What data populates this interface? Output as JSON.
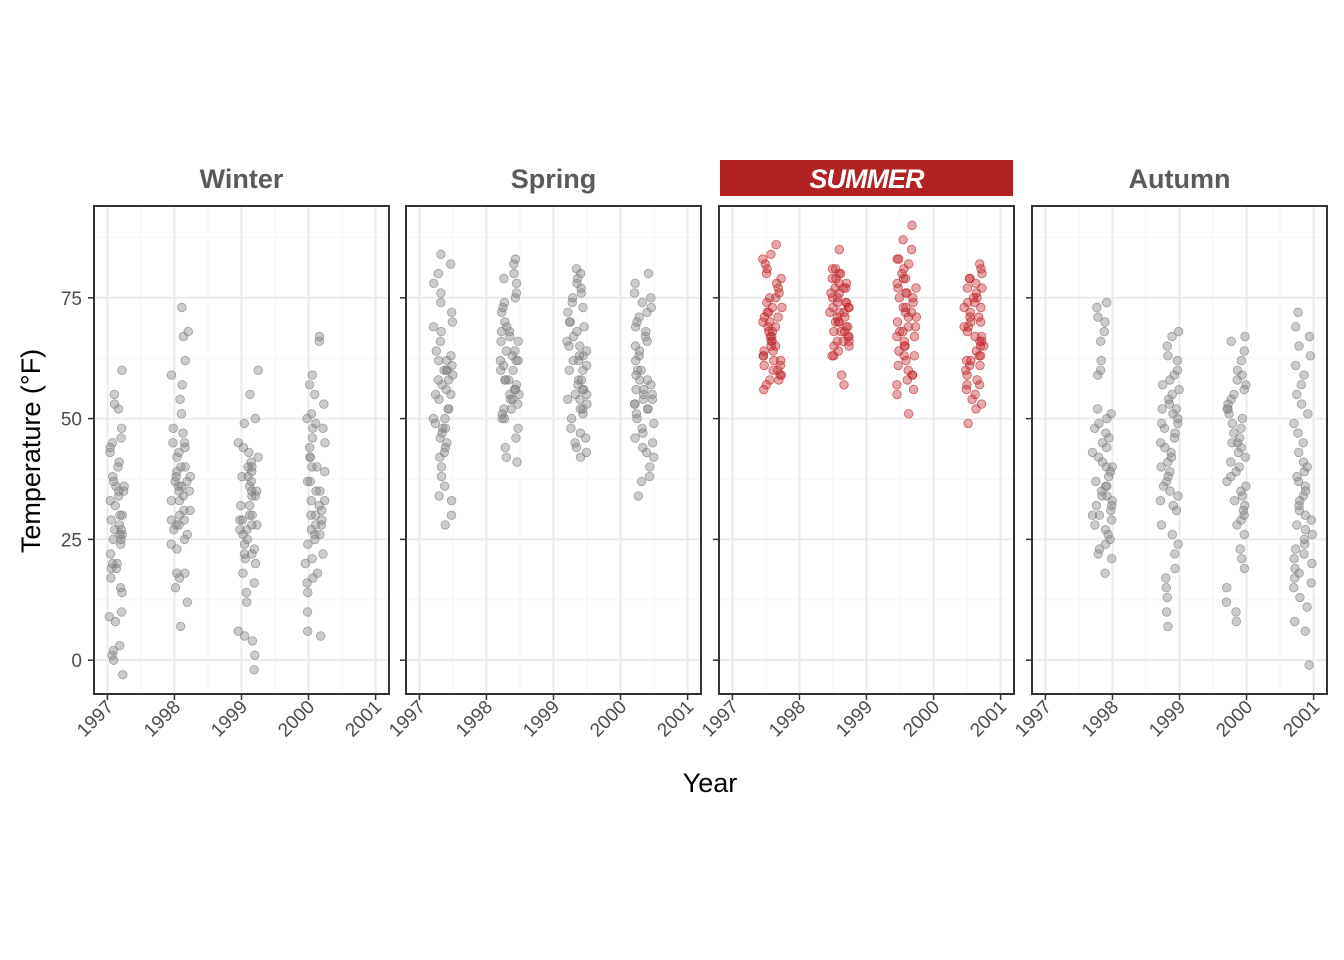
{
  "chart_data": {
    "type": "scatter",
    "xlabel": "Year",
    "ylabel": "Temperature (°F)",
    "xlim": [
      1996.8,
      2001.2
    ],
    "ylim": [
      -7,
      94
    ],
    "x_ticks": [
      1997,
      1998,
      1999,
      2000,
      2001
    ],
    "y_ticks": [
      0,
      25,
      50,
      75
    ],
    "grid": true,
    "highlight_panel": "Summer",
    "colors": {
      "default_point": "#808080",
      "highlight_point": "#c0282d",
      "highlight_strip": "#b22222",
      "panel_border": "#333333",
      "grid_major": "#ebebeb",
      "grid_minor": "#f5f5f5"
    },
    "panels": [
      {
        "name": "Winter",
        "strip_label": "Winter",
        "highlight": false,
        "clusters": [
          {
            "x_range": [
              1997.0,
              1997.25
            ],
            "y": [
              52,
              45,
              40,
              36,
              35,
              34,
              33,
              30,
              28,
              27,
              26,
              25,
              24,
              22,
              20,
              19,
              17,
              15,
              14,
              10,
              9,
              8,
              3,
              2,
              1,
              0,
              -3,
              60,
              55,
              53,
              46,
              44,
              43,
              38,
              37,
              36,
              35,
              32,
              30,
              29,
              27,
              26,
              25,
              20,
              19,
              48,
              41
            ]
          },
          {
            "x_range": [
              1997.95,
              1998.25
            ],
            "y": [
              48,
              47,
              45,
              44,
              43,
              40,
              38,
              36,
              35,
              33,
              31,
              30,
              29,
              28,
              27,
              25,
              24,
              23,
              18,
              17,
              15,
              12,
              7,
              73,
              68,
              67,
              62,
              59,
              57,
              54,
              51,
              45,
              42,
              40,
              38,
              37,
              36,
              35,
              34,
              33,
              31,
              29,
              28,
              26,
              18,
              39,
              37
            ]
          },
          {
            "x_range": [
              1998.95,
              1999.25
            ],
            "y": [
              42,
              40,
              38,
              36,
              35,
              34,
              32,
              30,
              29,
              28,
              27,
              26,
              25,
              23,
              22,
              20,
              18,
              16,
              14,
              12,
              6,
              5,
              4,
              1,
              -2,
              60,
              55,
              50,
              49,
              45,
              44,
              43,
              41,
              40,
              39,
              38,
              37,
              35,
              34,
              32,
              30,
              29,
              28,
              27,
              24,
              22,
              21
            ]
          },
          {
            "x_range": [
              1999.95,
              2000.25
            ],
            "y": [
              48,
              42,
              40,
              37,
              35,
              33,
              32,
              30,
              29,
              28,
              27,
              26,
              25,
              24,
              22,
              21,
              20,
              18,
              17,
              16,
              14,
              10,
              6,
              5,
              67,
              66,
              59,
              57,
              55,
              53,
              51,
              50,
              48,
              46,
              45,
              44,
              42,
              40,
              39,
              37,
              35,
              33,
              31,
              30,
              28,
              26,
              49
            ]
          }
        ]
      },
      {
        "name": "Spring",
        "strip_label": "Spring",
        "highlight": false,
        "clusters": [
          {
            "x_range": [
              1997.2,
              1997.5
            ],
            "y": [
              62,
              60,
              58,
              55,
              52,
              50,
              49,
              48,
              47,
              46,
              45,
              44,
              43,
              42,
              40,
              38,
              36,
              34,
              33,
              30,
              28,
              84,
              82,
              80,
              78,
              76,
              74,
              72,
              70,
              69,
              68,
              66,
              64,
              63,
              62,
              61,
              60,
              59,
              58,
              57,
              56,
              55,
              54,
              52,
              50,
              48,
              60
            ]
          },
          {
            "x_range": [
              1998.2,
              1998.5
            ],
            "y": [
              68,
              66,
              64,
              62,
              60,
              58,
              57,
              56,
              55,
              54,
              53,
              52,
              51,
              50,
              48,
              46,
              44,
              42,
              41,
              83,
              82,
              80,
              79,
              78,
              76,
              75,
              74,
              73,
              72,
              70,
              69,
              68,
              67,
              66,
              64,
              63,
              62,
              61,
              60,
              58,
              56,
              55,
              54,
              52,
              50,
              62,
              58
            ]
          },
          {
            "x_range": [
              1999.2,
              1999.5
            ],
            "y": [
              65,
              63,
              62,
              60,
              58,
              57,
              56,
              55,
              54,
              53,
              52,
              51,
              50,
              48,
              47,
              46,
              45,
              44,
              43,
              42,
              81,
              80,
              79,
              78,
              77,
              76,
              75,
              74,
              72,
              70,
              69,
              68,
              67,
              66,
              65,
              64,
              63,
              62,
              61,
              60,
              58,
              56,
              55,
              54,
              52,
              70,
              73
            ]
          },
          {
            "x_range": [
              2000.2,
              2000.5
            ],
            "y": [
              60,
              58,
              56,
              55,
              54,
              53,
              52,
              51,
              50,
              49,
              48,
              47,
              46,
              45,
              44,
              43,
              42,
              40,
              38,
              37,
              34,
              80,
              78,
              76,
              75,
              74,
              73,
              72,
              71,
              70,
              69,
              68,
              67,
              66,
              65,
              64,
              63,
              62,
              60,
              59,
              58,
              57,
              56,
              55,
              54,
              53,
              52
            ]
          }
        ]
      },
      {
        "name": "Summer",
        "strip_label": "SUMMER",
        "highlight": true,
        "clusters": [
          {
            "x_range": [
              1997.45,
              1997.75
            ],
            "y": [
              86,
              84,
              83,
              82,
              80,
              78,
              76,
              75,
              74,
              73,
              72,
              71,
              70,
              69,
              68,
              67,
              66,
              65,
              64,
              63,
              62,
              61,
              60,
              59,
              58,
              57,
              56,
              81,
              79,
              77,
              75,
              73,
              72,
              71,
              70,
              69,
              68,
              67,
              66,
              65,
              64,
              63,
              62,
              61,
              60,
              59,
              58
            ]
          },
          {
            "x_range": [
              1998.45,
              1998.75
            ],
            "y": [
              85,
              81,
              80,
              79,
              78,
              77,
              76,
              75,
              74,
              73,
              72,
              71,
              70,
              69,
              68,
              67,
              66,
              65,
              63,
              59,
              57,
              81,
              80,
              79,
              78,
              77,
              76,
              75,
              74,
              73,
              72,
              71,
              70,
              69,
              68,
              67,
              66,
              65,
              64,
              63,
              74,
              72,
              70,
              68,
              66,
              77,
              73
            ]
          },
          {
            "x_range": [
              1999.45,
              1999.75
            ],
            "y": [
              90,
              87,
              85,
              83,
              82,
              80,
              79,
              78,
              77,
              76,
              75,
              74,
              73,
              72,
              71,
              70,
              69,
              68,
              67,
              66,
              65,
              64,
              63,
              62,
              60,
              59,
              58,
              57,
              56,
              55,
              51,
              83,
              81,
              79,
              77,
              75,
              73,
              71,
              69,
              67,
              65,
              63,
              61,
              59,
              76,
              72,
              68
            ]
          },
          {
            "x_range": [
              2000.45,
              2000.75
            ],
            "y": [
              82,
              80,
              79,
              78,
              77,
              76,
              75,
              74,
              73,
              72,
              71,
              70,
              69,
              68,
              67,
              66,
              65,
              64,
              63,
              62,
              61,
              60,
              58,
              57,
              56,
              55,
              54,
              53,
              52,
              49,
              81,
              79,
              77,
              75,
              73,
              71,
              69,
              67,
              65,
              63,
              61,
              59,
              57,
              74,
              70,
              66,
              62
            ]
          }
        ]
      },
      {
        "name": "Autumn",
        "strip_label": "Autumn",
        "highlight": false,
        "clusters": [
          {
            "x_range": [
              1997.7,
              1998.0
            ],
            "y": [
              74,
              73,
              71,
              70,
              68,
              66,
              62,
              60,
              59,
              52,
              51,
              50,
              49,
              48,
              47,
              46,
              45,
              44,
              43,
              42,
              41,
              40,
              39,
              38,
              37,
              36,
              35,
              34,
              33,
              32,
              31,
              30,
              29,
              28,
              27,
              26,
              25,
              24,
              23,
              22,
              21,
              18,
              36,
              34,
              32,
              30,
              40
            ]
          },
          {
            "x_range": [
              1998.7,
              1999.0
            ],
            "y": [
              68,
              67,
              65,
              63,
              62,
              60,
              59,
              58,
              57,
              56,
              55,
              54,
              53,
              52,
              51,
              50,
              49,
              48,
              47,
              46,
              45,
              44,
              43,
              42,
              41,
              40,
              39,
              38,
              37,
              36,
              35,
              34,
              33,
              32,
              31,
              28,
              26,
              24,
              22,
              19,
              17,
              15,
              13,
              10,
              7,
              52,
              49
            ]
          },
          {
            "x_range": [
              1999.7,
              2000.0
            ],
            "y": [
              67,
              66,
              64,
              62,
              60,
              59,
              58,
              57,
              56,
              55,
              54,
              53,
              52,
              51,
              50,
              49,
              48,
              47,
              46,
              45,
              44,
              43,
              42,
              41,
              40,
              39,
              38,
              37,
              36,
              35,
              34,
              33,
              32,
              31,
              30,
              29,
              28,
              26,
              23,
              21,
              19,
              15,
              12,
              10,
              8,
              52,
              45
            ]
          },
          {
            "x_range": [
              2000.7,
              2001.0
            ],
            "y": [
              72,
              69,
              67,
              65,
              63,
              61,
              59,
              57,
              55,
              53,
              51,
              49,
              47,
              45,
              43,
              41,
              40,
              39,
              38,
              37,
              36,
              35,
              34,
              33,
              32,
              31,
              30,
              29,
              28,
              27,
              26,
              25,
              24,
              23,
              22,
              21,
              20,
              19,
              18,
              17,
              16,
              15,
              13,
              11,
              8,
              6,
              -1
            ]
          }
        ]
      }
    ]
  }
}
